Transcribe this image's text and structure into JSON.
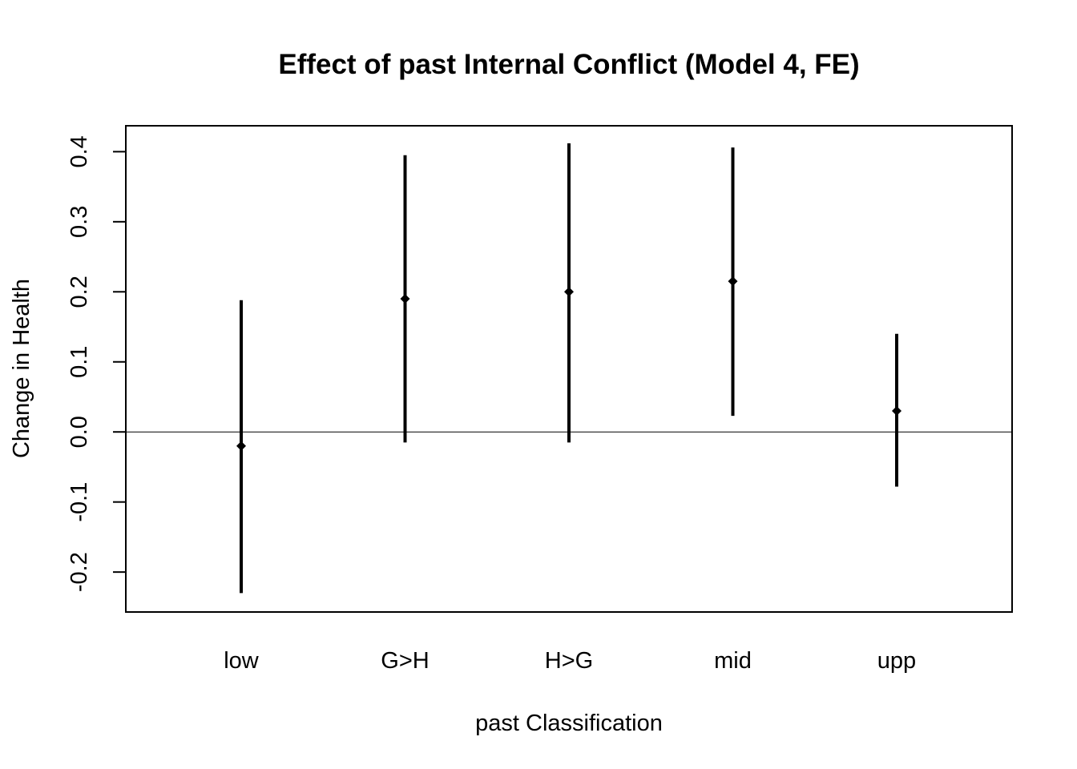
{
  "chart_data": {
    "type": "errorbar",
    "title": "Effect of past Internal Conflict (Model 4, FE)",
    "xlabel": "past Classification",
    "ylabel": "Change in Health",
    "categories": [
      "low",
      "G>H",
      "H>G",
      "mid",
      "upp"
    ],
    "estimates": [
      -0.02,
      0.19,
      0.2,
      0.215,
      0.03
    ],
    "lower": [
      -0.23,
      -0.015,
      -0.015,
      0.023,
      -0.078
    ],
    "upper": [
      0.188,
      0.395,
      0.412,
      0.406,
      0.14
    ],
    "ylim": [
      -0.257,
      0.437
    ],
    "yticks": [
      -0.2,
      -0.1,
      0.0,
      0.1,
      0.2,
      0.3,
      0.4
    ],
    "ytick_labels": [
      "-0.2",
      "-0.1",
      "0.0",
      "0.1",
      "0.2",
      "0.3",
      "0.4"
    ],
    "reference_line": 0.0,
    "grid": false,
    "color": "#000000"
  }
}
